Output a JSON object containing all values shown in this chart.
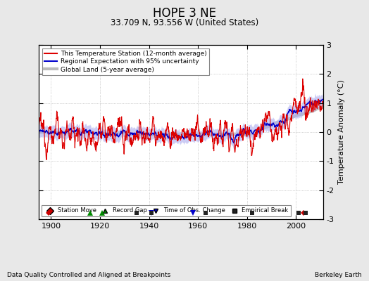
{
  "title": "HOPE 3 NE",
  "subtitle": "33.709 N, 93.556 W (United States)",
  "ylabel": "Temperature Anomaly (°C)",
  "xlabel_bottom": "Data Quality Controlled and Aligned at Breakpoints",
  "xlabel_right": "Berkeley Earth",
  "ylim": [
    -3,
    3
  ],
  "xlim": [
    1895,
    2011
  ],
  "xticks": [
    1900,
    1920,
    1940,
    1960,
    1980,
    2000
  ],
  "yticks": [
    -3,
    -2,
    -1,
    0,
    1,
    2,
    3
  ],
  "background_color": "#e8e8e8",
  "plot_bg_color": "#ffffff",
  "station_color": "#dd0000",
  "regional_color": "#0000cc",
  "regional_fill_color": "#aaaaee",
  "global_color": "#bbbbbb",
  "legend_entries": [
    "This Temperature Station (12-month average)",
    "Regional Expectation with 95% uncertainty",
    "Global Land (5-year average)"
  ],
  "marker_events": {
    "station_move": {
      "years": [
        1899,
        2003
      ],
      "color": "#cc0000",
      "marker": "D"
    },
    "record_gap": {
      "years": [
        1916,
        1921
      ],
      "color": "#008800",
      "marker": "^"
    },
    "time_of_obs": {
      "years": [
        1941,
        1958
      ],
      "color": "#0000cc",
      "marker": "v"
    },
    "empirical_break": {
      "years": [
        1935,
        1941,
        1963,
        1982,
        2001,
        2004
      ],
      "color": "#222222",
      "marker": "s"
    }
  },
  "seed": 12345
}
